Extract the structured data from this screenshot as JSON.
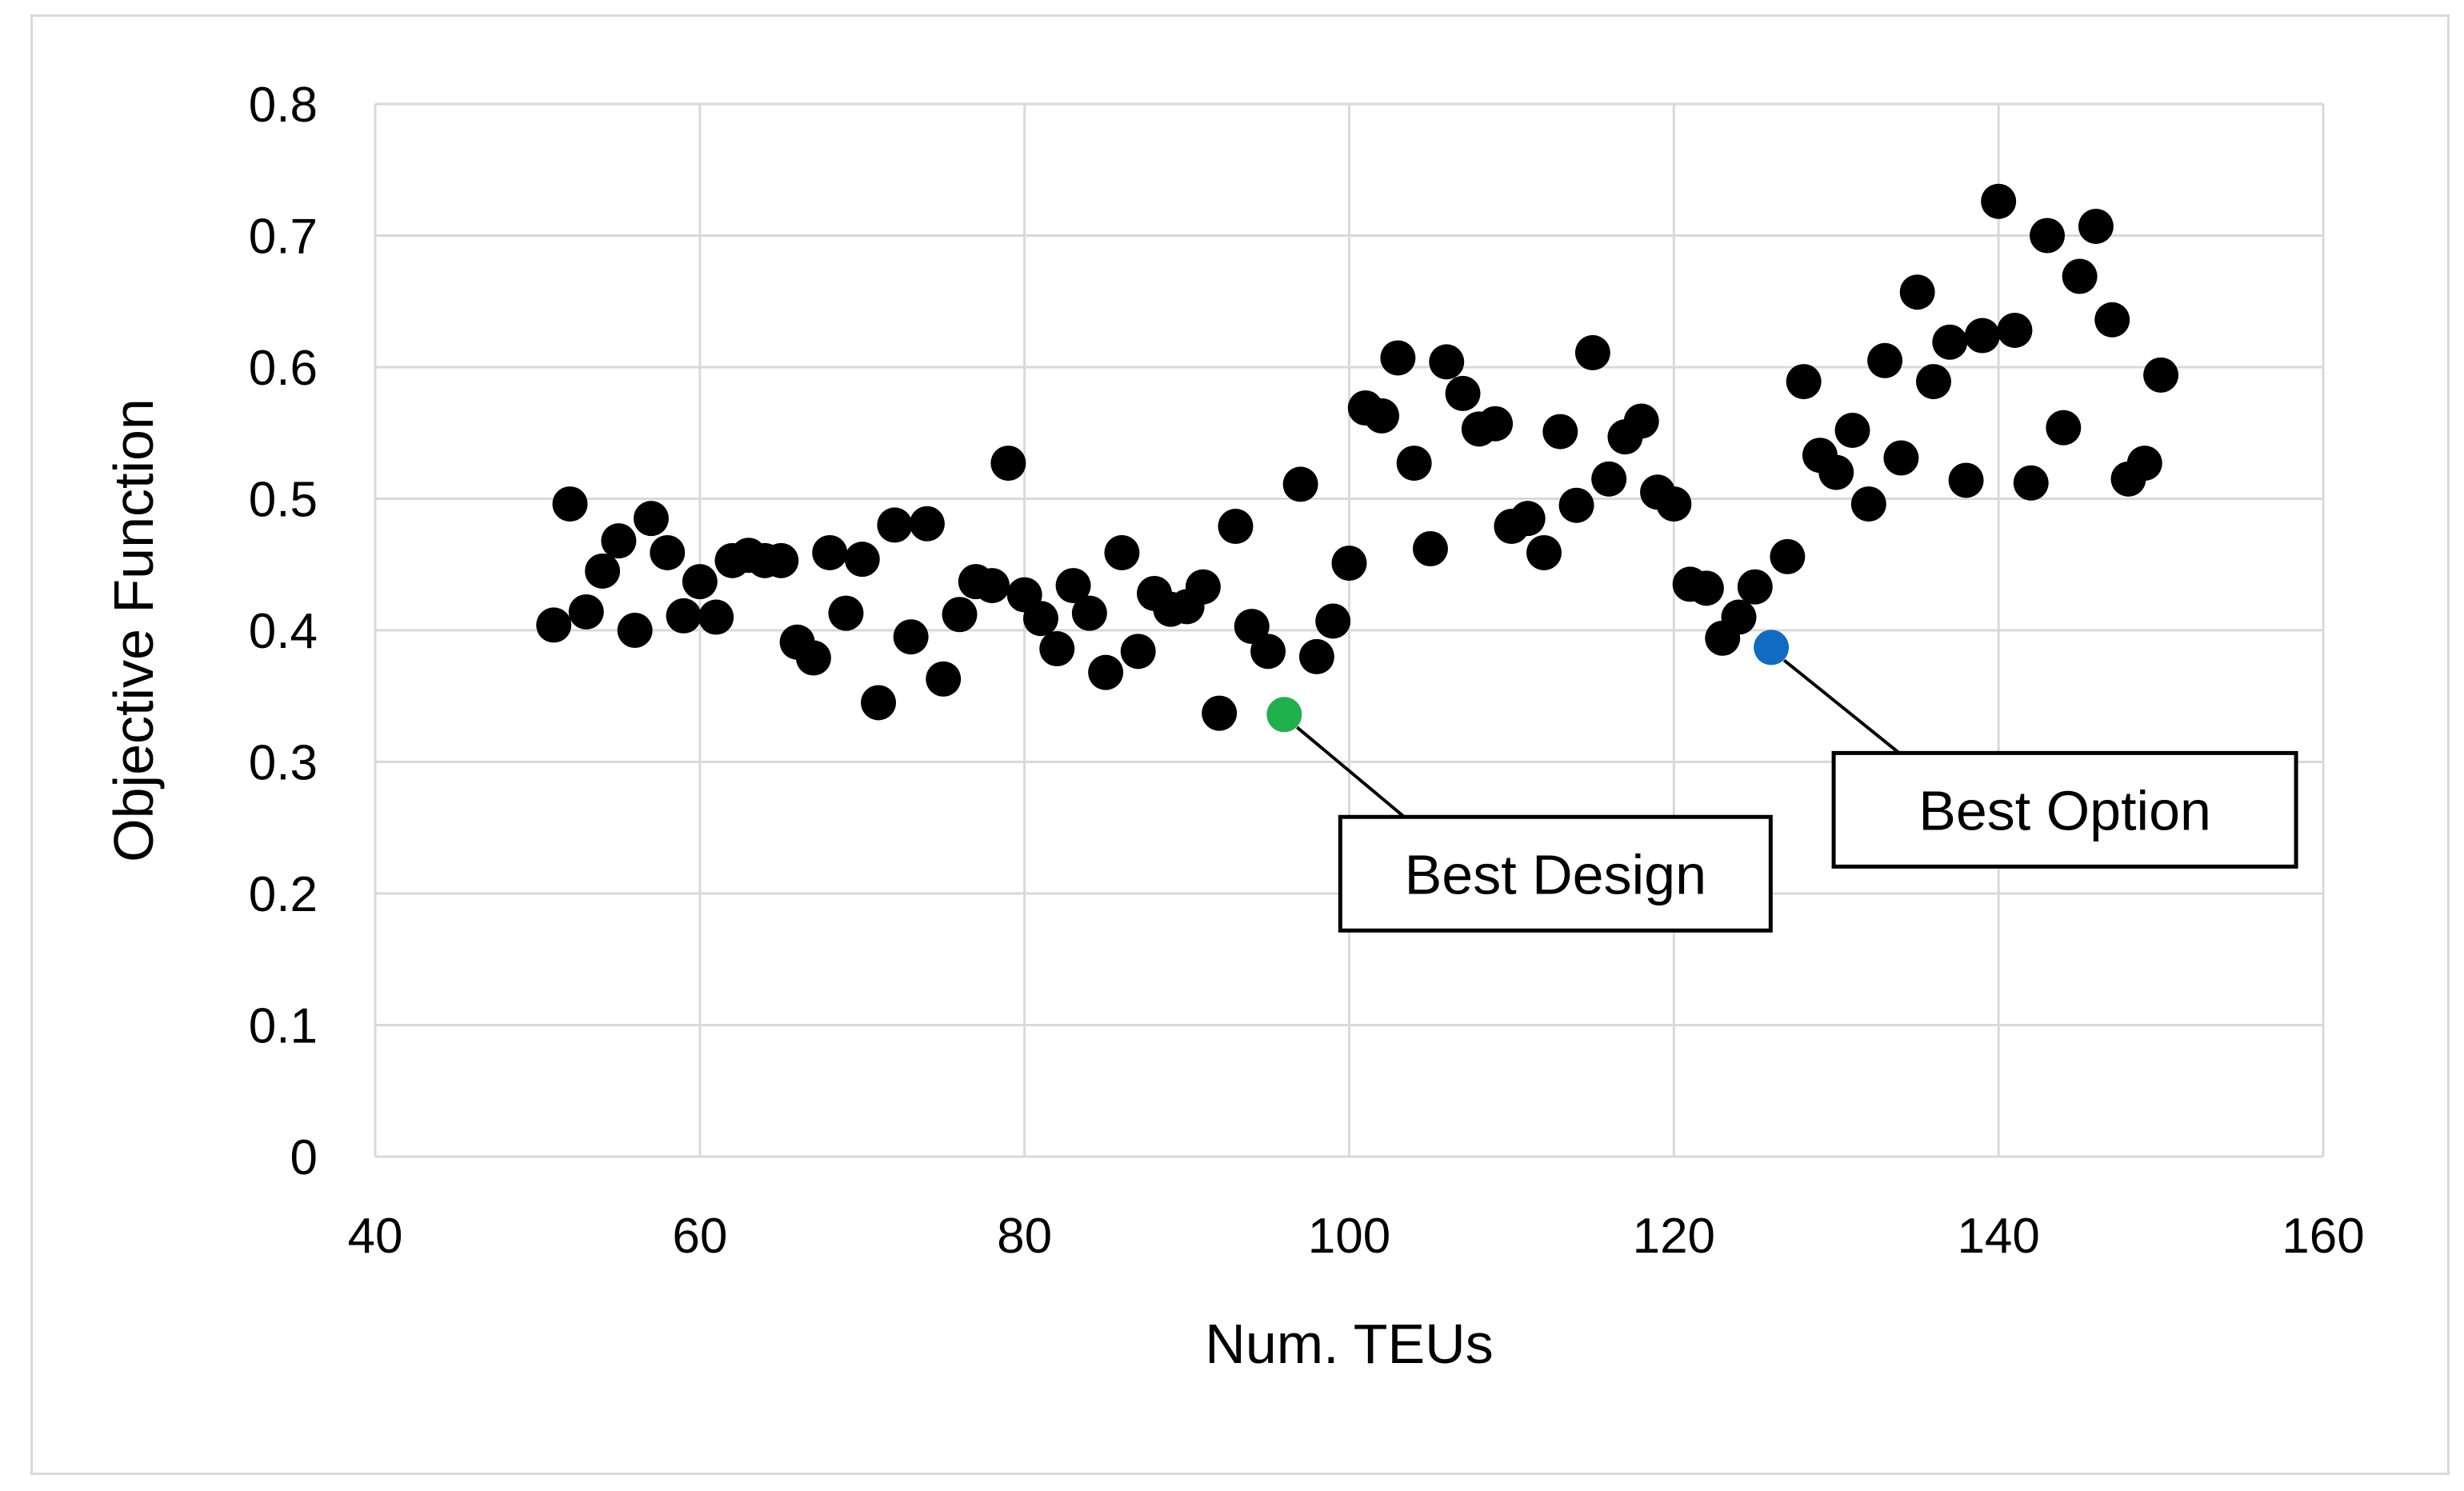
{
  "chart_data": {
    "type": "scatter",
    "title": "",
    "xlabel": "Num. TEUs",
    "ylabel": "Objective Function",
    "xlim": [
      40,
      160
    ],
    "ylim": [
      0,
      0.8
    ],
    "x_ticks": [
      40,
      60,
      80,
      100,
      120,
      140,
      160
    ],
    "x_tick_labels": [
      "40",
      "60",
      "80",
      "100",
      "120",
      "140",
      "160"
    ],
    "y_ticks": [
      0,
      0.1,
      0.2,
      0.3,
      0.4,
      0.5,
      0.6,
      0.7,
      0.8
    ],
    "y_tick_labels": [
      "0",
      "0.1",
      "0.2",
      "0.3",
      "0.4",
      "0.5",
      "0.6",
      "0.7",
      "0.8"
    ],
    "grid": true,
    "legend": "none",
    "colors": {
      "points": "#000000",
      "best_design": "#1fb04b",
      "best_option": "#0f6cc0",
      "gridlines": "#d9d9d9"
    },
    "series": [
      {
        "points": [
          [
            51,
            0.404
          ],
          [
            52,
            0.496
          ],
          [
            53,
            0.414
          ],
          [
            54,
            0.445
          ],
          [
            55,
            0.468
          ],
          [
            56,
            0.4
          ],
          [
            57,
            0.485
          ],
          [
            58,
            0.459
          ],
          [
            59,
            0.411
          ],
          [
            60,
            0.437
          ],
          [
            61,
            0.41
          ],
          [
            62,
            0.453
          ],
          [
            63,
            0.457
          ],
          [
            64,
            0.453
          ],
          [
            65,
            0.453
          ],
          [
            66,
            0.391
          ],
          [
            67,
            0.379
          ],
          [
            68,
            0.459
          ],
          [
            69,
            0.413
          ],
          [
            70,
            0.454
          ],
          [
            71,
            0.345
          ],
          [
            72,
            0.48
          ],
          [
            73,
            0.395
          ],
          [
            74,
            0.481
          ],
          [
            75,
            0.363
          ],
          [
            76,
            0.412
          ],
          [
            77,
            0.437
          ],
          [
            78,
            0.434
          ],
          [
            79,
            0.527
          ],
          [
            80,
            0.427
          ],
          [
            81,
            0.409
          ],
          [
            82,
            0.386
          ],
          [
            83,
            0.434
          ],
          [
            84,
            0.413
          ],
          [
            85,
            0.368
          ],
          [
            86,
            0.459
          ],
          [
            87,
            0.384
          ],
          [
            88,
            0.428
          ],
          [
            89,
            0.416
          ],
          [
            90,
            0.418
          ],
          [
            91,
            0.433
          ],
          [
            92,
            0.337
          ],
          [
            93,
            0.479
          ],
          [
            94,
            0.403
          ],
          [
            95,
            0.384
          ],
          [
            97,
            0.511
          ],
          [
            98,
            0.38
          ],
          [
            99,
            0.407
          ],
          [
            100,
            0.451
          ],
          [
            101,
            0.569
          ],
          [
            102,
            0.563
          ],
          [
            103,
            0.607
          ],
          [
            104,
            0.527
          ],
          [
            105,
            0.462
          ],
          [
            106,
            0.604
          ],
          [
            107,
            0.58
          ],
          [
            108,
            0.553
          ],
          [
            109,
            0.557
          ],
          [
            110,
            0.479
          ],
          [
            111,
            0.485
          ],
          [
            112,
            0.459
          ],
          [
            113,
            0.551
          ],
          [
            114,
            0.495
          ],
          [
            115,
            0.611
          ],
          [
            116,
            0.515
          ],
          [
            117,
            0.547
          ],
          [
            118,
            0.559
          ],
          [
            119,
            0.505
          ],
          [
            120,
            0.496
          ],
          [
            121,
            0.435
          ],
          [
            122,
            0.432
          ],
          [
            123,
            0.394
          ],
          [
            124,
            0.41
          ],
          [
            125,
            0.433
          ],
          [
            127,
            0.456
          ],
          [
            128,
            0.589
          ],
          [
            129,
            0.533
          ],
          [
            130,
            0.52
          ],
          [
            131,
            0.552
          ],
          [
            132,
            0.496
          ],
          [
            133,
            0.605
          ],
          [
            134,
            0.531
          ],
          [
            135,
            0.657
          ],
          [
            136,
            0.589
          ],
          [
            137,
            0.619
          ],
          [
            138,
            0.514
          ],
          [
            139,
            0.624
          ],
          [
            140,
            0.726
          ],
          [
            141,
            0.628
          ],
          [
            142,
            0.512
          ],
          [
            143,
            0.7
          ],
          [
            144,
            0.554
          ],
          [
            145,
            0.669
          ],
          [
            146,
            0.707
          ],
          [
            147,
            0.636
          ],
          [
            148,
            0.515
          ],
          [
            149,
            0.527
          ],
          [
            150,
            0.594
          ]
        ],
        "color": "#000000"
      }
    ],
    "highlights": [
      {
        "label": "Best Design",
        "x": 96,
        "y": 0.336,
        "color": "#1fb04b"
      },
      {
        "label": "Best Option",
        "x": 126,
        "y": 0.387,
        "color": "#0f6cc0"
      }
    ]
  }
}
